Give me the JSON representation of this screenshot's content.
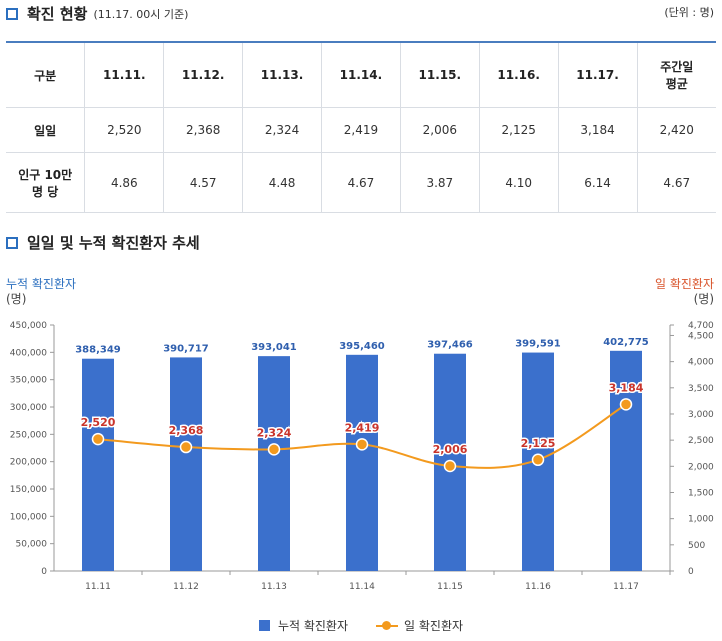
{
  "section1": {
    "title": "확진 현황",
    "subtitle": "(11.17. 00시 기준)",
    "unit": "(단위 : 명)"
  },
  "table": {
    "headers": [
      "구분",
      "11.11.",
      "11.12.",
      "11.13.",
      "11.14.",
      "11.15.",
      "11.16.",
      "11.17.",
      "주간일\n평균"
    ],
    "rows": [
      {
        "label": "일일",
        "cells": [
          "2,520",
          "2,368",
          "2,324",
          "2,419",
          "2,006",
          "2,125",
          "3,184",
          "2,420"
        ]
      },
      {
        "label": "인구 10만\n명 당",
        "cells": [
          "4.86",
          "4.57",
          "4.48",
          "4.67",
          "3.87",
          "4.10",
          "6.14",
          "4.67"
        ]
      }
    ]
  },
  "section2": {
    "title": "일일 및 누적 확진환자 추세"
  },
  "chart_data": {
    "type": "bar",
    "categories": [
      "11.11",
      "11.12",
      "11.13",
      "11.14",
      "11.15",
      "11.16",
      "11.17"
    ],
    "series": [
      {
        "name": "누적 확진환자",
        "type": "bar",
        "axis": "left",
        "color": "#3b70cc",
        "values": [
          388349,
          390717,
          393041,
          395460,
          397466,
          399591,
          402775
        ],
        "labels": [
          "388,349",
          "390,717",
          "393,041",
          "395,460",
          "397,466",
          "399,591",
          "402,775"
        ]
      },
      {
        "name": "일 확진환자",
        "type": "line",
        "axis": "right",
        "color": "#f39a1e",
        "values": [
          2520,
          2368,
          2324,
          2419,
          2006,
          2125,
          3184
        ],
        "labels": [
          "2,520",
          "2,368",
          "2,324",
          "2,419",
          "2,006",
          "2,125",
          "3,184"
        ]
      }
    ],
    "ylabel_left": "누적 확진환자",
    "ylabel_left_unit": "(명)",
    "ylabel_right": "일 확진환자",
    "ylabel_right_unit": "(명)",
    "ylim_left": [
      0,
      450000
    ],
    "ylim_right": [
      0,
      4700
    ],
    "yticks_left": [
      "0",
      "50,000",
      "100,000",
      "150,000",
      "200,000",
      "250,000",
      "300,000",
      "350,000",
      "400,000",
      "450,000"
    ],
    "yticks_right": [
      "0",
      "500",
      "1,000",
      "1,500",
      "2,000",
      "2,500",
      "3,000",
      "3,500",
      "4,000",
      "4,500",
      "4,700"
    ],
    "legend_position": "bottom"
  }
}
